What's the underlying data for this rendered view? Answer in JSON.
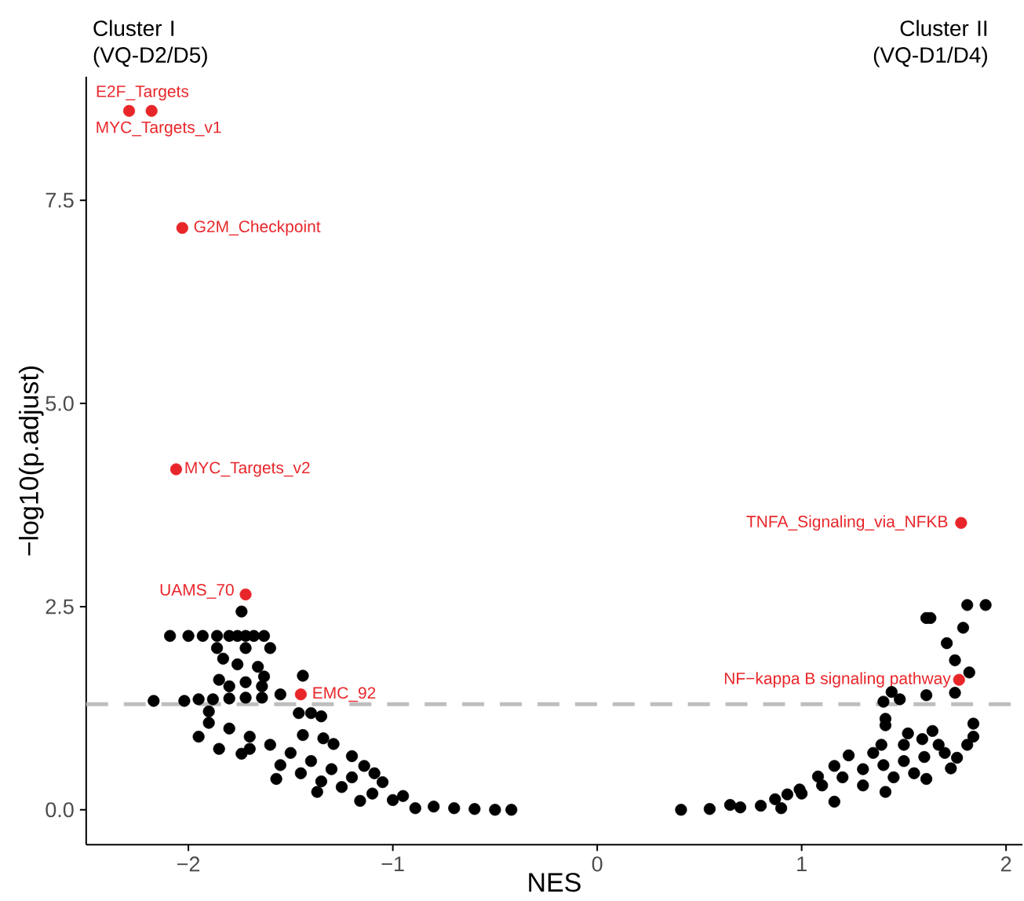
{
  "chart_data": {
    "type": "scatter",
    "xlabel": "NES",
    "ylabel": "−log10(p.adjust)",
    "xlim": [
      -2.5,
      2.08
    ],
    "ylim": [
      -0.43,
      9.02
    ],
    "xticks": [
      {
        "value": -2,
        "label": "−2"
      },
      {
        "value": -1,
        "label": "−1"
      },
      0,
      1,
      2
    ],
    "yticks": [
      {
        "value": 0,
        "label": "0.0"
      },
      2.5,
      {
        "value": 5,
        "label": "5.0"
      },
      7.5
    ],
    "marker": "circle",
    "ref_lines": [
      {
        "axis": "y",
        "value": 1.3,
        "color": "#bebebe",
        "line_style": "dashed"
      }
    ],
    "series": [
      {
        "color": "#000000",
        "x": [
          -2.09,
          -2.0,
          -1.93,
          -1.86,
          -1.8,
          -1.76,
          -1.72,
          -1.68,
          -1.63,
          -1.74,
          -2.17,
          -2.02,
          -1.95,
          -1.88,
          -1.8,
          -1.72,
          -1.64,
          -1.55,
          -1.44,
          -1.6,
          -1.66,
          -1.63,
          -1.64,
          -1.85,
          -1.8,
          -1.72,
          -1.83,
          -1.76,
          -1.86,
          -1.72,
          -1.46,
          -1.35,
          -1.4,
          -1.9,
          -1.9,
          -1.44,
          -1.34,
          -1.29,
          -1.2,
          -1.14,
          -1.09,
          -1.05,
          -0.95,
          -0.42,
          -1.74,
          -1.57,
          -1.37,
          -1.16,
          -0.89,
          -0.6,
          -1.8,
          -1.7,
          -1.6,
          -1.5,
          -1.4,
          -1.3,
          -1.2,
          -1.7,
          -1.55,
          -1.45,
          -1.35,
          -1.25,
          -1.1,
          -1.0,
          -0.8,
          -0.7,
          -0.5,
          -1.95,
          -1.85,
          1.81,
          1.9,
          1.61,
          1.63,
          1.79,
          1.71,
          1.75,
          1.82,
          1.75,
          1.61,
          1.44,
          1.48,
          1.4,
          1.41,
          1.41,
          1.84,
          1.64,
          1.52,
          1.84,
          1.81,
          1.76,
          1.67,
          1.59,
          1.39,
          1.23,
          1.16,
          1.08,
          0.99,
          0.93,
          0.87,
          0.65,
          0.41,
          1.73,
          1.61,
          1.41,
          1.16,
          0.9,
          1.3,
          1.4,
          1.5,
          1.6,
          1.2,
          1.1,
          1.0,
          1.45,
          1.55,
          1.3,
          0.8,
          0.7,
          0.55,
          1.7,
          1.35,
          1.5
        ],
        "values": [
          2.14,
          2.14,
          2.14,
          2.14,
          2.14,
          2.14,
          2.14,
          2.14,
          2.14,
          2.44,
          1.34,
          1.34,
          1.36,
          1.36,
          1.37,
          1.38,
          1.38,
          1.42,
          1.65,
          1.99,
          1.76,
          1.64,
          1.52,
          1.6,
          1.52,
          1.57,
          1.86,
          1.79,
          1.99,
          1.99,
          1.19,
          1.15,
          1.19,
          1.21,
          1.07,
          0.92,
          0.88,
          0.81,
          0.66,
          0.54,
          0.45,
          0.34,
          0.17,
          0.0,
          0.69,
          0.38,
          0.22,
          0.11,
          0.02,
          0.01,
          1.0,
          0.9,
          0.8,
          0.7,
          0.6,
          0.5,
          0.4,
          0.75,
          0.55,
          0.45,
          0.35,
          0.28,
          0.2,
          0.12,
          0.04,
          0.02,
          0.0,
          0.9,
          0.75,
          2.52,
          2.52,
          2.36,
          2.36,
          2.24,
          2.05,
          1.84,
          1.69,
          1.44,
          1.41,
          1.45,
          1.36,
          1.33,
          1.12,
          1.04,
          1.06,
          0.97,
          0.94,
          0.9,
          0.8,
          0.64,
          0.8,
          0.87,
          0.8,
          0.67,
          0.54,
          0.41,
          0.25,
          0.19,
          0.13,
          0.06,
          0.0,
          0.51,
          0.38,
          0.22,
          0.1,
          0.02,
          0.5,
          0.55,
          0.6,
          0.65,
          0.4,
          0.3,
          0.2,
          0.4,
          0.45,
          0.3,
          0.05,
          0.03,
          0.01,
          0.7,
          0.7,
          0.8
        ]
      },
      {
        "color": "#e8262a",
        "x": [
          -2.29,
          -2.18,
          -2.03,
          -2.06,
          -1.72,
          -1.45,
          1.78,
          1.77
        ],
        "values": [
          8.6,
          8.6,
          7.16,
          4.19,
          2.65,
          1.42,
          3.53,
          1.6
        ]
      }
    ],
    "annotations": [
      "Cluster I (VQ-D2/D5)",
      "Cluster II (VQ-D1/D4)",
      {
        "text": "E2F_Targets",
        "x": -2.29,
        "y": 8.6
      },
      {
        "text": "MYC_Targets_v1",
        "x": -2.18,
        "y": 8.6
      },
      {
        "text": "G2M_Checkpoint",
        "x": -2.03,
        "y": 7.16
      },
      {
        "text": "MYC_Targets_v2",
        "x": -2.06,
        "y": 4.19
      },
      {
        "text": "UAMS_70",
        "x": -1.72,
        "y": 2.65
      },
      {
        "text": "EMC_92",
        "x": -1.45,
        "y": 1.42
      },
      {
        "text": "TNFA_Signaling_via_NFKB",
        "x": 1.78,
        "y": 3.53
      },
      {
        "text": "NF−kappa B signaling pathway",
        "x": 1.77,
        "y": 1.6
      }
    ]
  }
}
